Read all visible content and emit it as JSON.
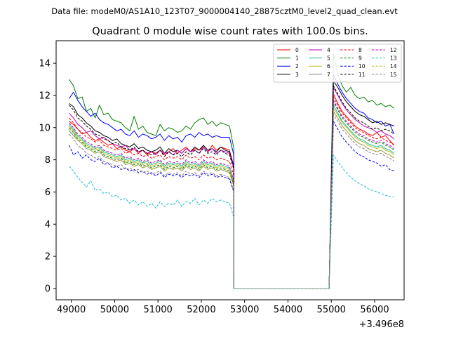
{
  "chart_data": {
    "type": "line",
    "suptitle": "Data file: modeM0/AS1A10_123T07_9000004140_28875cztM0_level2_quad_clean.evt",
    "title": "Quadrant 0 module wise count rates with 100.0s bins.",
    "xlabel": "",
    "ylabel": "",
    "x_offset_label": "+3.496e8",
    "xlim": [
      48650,
      56680
    ],
    "ylim": [
      -0.7,
      15.4
    ],
    "x_ticks": [
      49000,
      50000,
      51000,
      52000,
      53000,
      54000,
      55000,
      56000
    ],
    "x_tick_labels": [
      "49000",
      "50000",
      "51000",
      "52000",
      "53000",
      "54000",
      "55000",
      "56000"
    ],
    "y_ticks": [
      0,
      2,
      4,
      6,
      8,
      10,
      12,
      14
    ],
    "y_tick_labels": [
      "0",
      "2",
      "4",
      "6",
      "8",
      "10",
      "12",
      "14"
    ],
    "grid": false,
    "legend_position": "upper-right",
    "legend_columns": 4,
    "x_start": 48950,
    "x_step": 100,
    "gap_start": 52750,
    "gap_end": 54950,
    "series": [
      {
        "name": "0",
        "color": "#ff0000",
        "dash": "solid",
        "pre": [
          10.4,
          10.2,
          9.9,
          9.6,
          9.7,
          9.4,
          9.2,
          9.3,
          9.1,
          8.9,
          9.0,
          8.7,
          8.8,
          8.6,
          8.5,
          8.7,
          8.4,
          8.6,
          8.3,
          8.5,
          8.4,
          8.6,
          8.3,
          8.5,
          8.7,
          8.4,
          8.6,
          8.8,
          8.5,
          8.7,
          8.6,
          8.8,
          8.5,
          8.9,
          8.6,
          8.8,
          8.7,
          8.6,
          7.6
        ],
        "post": [
          12.1,
          11.5,
          11.0,
          10.7,
          10.4,
          10.1,
          9.9,
          9.8,
          9.6,
          9.5,
          9.7,
          9.4,
          9.5,
          9.2,
          8.9
        ]
      },
      {
        "name": "1",
        "color": "#008000",
        "dash": "solid",
        "pre": [
          13.0,
          12.6,
          11.8,
          11.9,
          11.0,
          11.2,
          10.6,
          11.4,
          10.8,
          10.9,
          10.5,
          10.4,
          10.3,
          10.0,
          9.8,
          10.7,
          9.9,
          10.1,
          9.7,
          9.6,
          9.5,
          10.2,
          9.8,
          10.0,
          9.9,
          9.7,
          9.8,
          10.1,
          9.9,
          10.3,
          10.5,
          10.6,
          10.2,
          10.4,
          10.1,
          10.3,
          10.2,
          10.1,
          8.7
        ],
        "post": [
          14.6,
          13.3,
          12.6,
          12.2,
          12.5,
          12.0,
          11.8,
          11.9,
          11.6,
          11.7,
          11.4,
          11.5,
          11.3,
          11.4,
          11.2
        ]
      },
      {
        "name": "2",
        "color": "#0000ff",
        "dash": "solid",
        "pre": [
          11.8,
          12.2,
          11.7,
          11.3,
          11.0,
          10.7,
          10.9,
          10.5,
          10.3,
          10.2,
          10.0,
          9.8,
          9.9,
          9.6,
          9.5,
          9.8,
          9.4,
          9.6,
          9.5,
          9.3,
          9.4,
          9.6,
          9.2,
          9.5,
          9.3,
          9.4,
          9.1,
          9.5,
          9.6,
          9.4,
          9.7,
          9.5,
          9.6,
          9.4,
          9.5,
          9.4,
          9.4,
          9.4,
          8.3
        ],
        "post": [
          13.3,
          12.7,
          12.2,
          11.8,
          11.5,
          11.2,
          11.0,
          10.9,
          10.6,
          10.5,
          10.3,
          10.4,
          10.1,
          10.2,
          9.6
        ]
      },
      {
        "name": "3",
        "color": "#000000",
        "dash": "solid",
        "pre": [
          11.5,
          11.3,
          10.8,
          10.6,
          10.3,
          10.1,
          9.8,
          9.7,
          9.5,
          9.4,
          9.2,
          9.3,
          9.0,
          8.9,
          8.8,
          9.0,
          8.7,
          8.8,
          8.6,
          8.5,
          8.6,
          8.8,
          8.4,
          8.7,
          8.5,
          8.6,
          8.4,
          8.7,
          8.5,
          8.8,
          8.6,
          8.9,
          8.6,
          8.7,
          8.5,
          8.8,
          8.6,
          8.5,
          7.6
        ],
        "post": [
          12.9,
          12.5,
          12.0,
          11.6,
          11.3,
          11.0,
          10.8,
          10.7,
          10.5,
          10.3,
          10.4,
          10.2,
          10.3,
          10.2,
          10.1
        ]
      },
      {
        "name": "4",
        "color": "#bf00bf",
        "dash": "solid",
        "pre": [
          10.9,
          10.6,
          10.2,
          10.0,
          9.7,
          9.8,
          9.5,
          9.3,
          9.4,
          9.2,
          9.0,
          8.9,
          8.8,
          8.9,
          8.6,
          8.7,
          8.5,
          8.6,
          8.4,
          8.5,
          8.3,
          8.6,
          8.4,
          8.5,
          8.3,
          8.6,
          8.4,
          8.7,
          8.5,
          8.6,
          8.4,
          8.8,
          8.5,
          8.7,
          8.4,
          8.6,
          8.5,
          8.4,
          7.5
        ],
        "post": [
          12.5,
          12.0,
          11.5,
          11.1,
          10.8,
          10.5,
          10.3,
          10.1,
          10.0,
          9.9,
          9.7,
          9.8,
          9.6,
          9.5,
          9.3
        ]
      },
      {
        "name": "5",
        "color": "#1abc9c",
        "dash": "solid",
        "pre": [
          10.2,
          9.9,
          9.5,
          9.3,
          9.0,
          8.9,
          8.7,
          8.8,
          8.5,
          8.4,
          8.3,
          8.2,
          8.3,
          8.0,
          8.1,
          7.9,
          8.0,
          7.8,
          7.9,
          7.7,
          7.8,
          7.9,
          7.6,
          7.8,
          7.7,
          7.8,
          7.6,
          7.9,
          7.7,
          7.8,
          7.6,
          7.9,
          7.7,
          7.8,
          7.6,
          7.7,
          7.6,
          7.5,
          6.6
        ],
        "post": [
          11.4,
          10.9,
          10.4,
          10.1,
          9.8,
          9.5,
          9.3,
          9.2,
          9.0,
          8.9,
          8.8,
          8.9,
          8.7,
          8.6,
          8.4
        ]
      },
      {
        "name": "6",
        "color": "#bcbd22",
        "dash": "solid",
        "pre": [
          10.1,
          9.8,
          9.4,
          9.2,
          8.9,
          8.8,
          8.6,
          8.7,
          8.4,
          8.3,
          8.2,
          8.1,
          8.2,
          7.9,
          8.0,
          7.8,
          7.9,
          7.7,
          7.8,
          7.6,
          7.7,
          7.8,
          7.5,
          7.7,
          7.6,
          7.7,
          7.5,
          7.8,
          7.6,
          7.7,
          7.5,
          7.8,
          7.6,
          7.7,
          7.5,
          7.6,
          7.5,
          7.4,
          6.5
        ],
        "post": [
          11.2,
          10.8,
          10.3,
          10.0,
          9.7,
          9.4,
          9.2,
          9.1,
          8.9,
          8.8,
          8.7,
          8.8,
          8.6,
          8.5,
          8.3
        ]
      },
      {
        "name": "7",
        "color": "#808080",
        "dash": "solid",
        "pre": [
          9.8,
          9.5,
          9.2,
          9.0,
          8.7,
          8.6,
          8.4,
          8.5,
          8.2,
          8.1,
          8.0,
          7.9,
          8.0,
          7.7,
          7.8,
          7.6,
          7.7,
          7.5,
          7.6,
          7.4,
          7.5,
          7.6,
          7.3,
          7.5,
          7.4,
          7.5,
          7.3,
          7.6,
          7.4,
          7.5,
          7.3,
          7.6,
          7.4,
          7.5,
          7.3,
          7.4,
          7.3,
          7.2,
          6.4
        ],
        "post": [
          11.0,
          10.6,
          10.1,
          9.8,
          9.5,
          9.2,
          9.0,
          8.9,
          8.7,
          8.6,
          8.5,
          8.6,
          8.4,
          8.3,
          8.1
        ]
      },
      {
        "name": "8",
        "color": "#ff0000",
        "dash": "dashed",
        "pre": [
          10.6,
          10.3,
          9.9,
          9.7,
          9.4,
          9.3,
          9.1,
          9.2,
          8.9,
          8.8,
          8.7,
          8.6,
          8.7,
          8.4,
          8.5,
          8.3,
          8.4,
          8.2,
          8.3,
          8.1,
          8.2,
          8.3,
          8.0,
          8.2,
          8.1,
          8.2,
          8.0,
          8.3,
          8.1,
          8.2,
          8.0,
          8.3,
          8.1,
          8.2,
          8.0,
          8.1,
          8.0,
          7.9,
          7.0
        ],
        "post": [
          11.9,
          11.4,
          10.9,
          10.6,
          10.3,
          10.0,
          9.8,
          9.7,
          9.5,
          9.4,
          9.3,
          9.4,
          9.2,
          9.1,
          8.9
        ]
      },
      {
        "name": "9",
        "color": "#008000",
        "dash": "dashed",
        "pre": [
          10.0,
          9.7,
          9.3,
          9.1,
          8.8,
          8.7,
          8.5,
          8.6,
          8.3,
          8.2,
          8.1,
          8.0,
          8.1,
          7.8,
          7.9,
          7.7,
          7.8,
          7.6,
          7.7,
          7.5,
          7.6,
          7.7,
          7.4,
          7.6,
          7.5,
          7.6,
          7.4,
          7.7,
          7.5,
          7.6,
          7.4,
          7.7,
          7.5,
          7.6,
          7.4,
          7.5,
          7.4,
          7.3,
          6.4
        ],
        "post": [
          11.6,
          11.1,
          10.6,
          10.3,
          10.0,
          9.7,
          9.5,
          9.4,
          9.2,
          9.1,
          9.0,
          9.1,
          8.9,
          8.8,
          8.6
        ]
      },
      {
        "name": "10",
        "color": "#0000ff",
        "dash": "dashed",
        "pre": [
          8.9,
          8.3,
          8.5,
          8.1,
          8.3,
          8.0,
          7.9,
          8.1,
          7.7,
          7.8,
          7.5,
          7.6,
          7.4,
          7.5,
          7.3,
          7.4,
          7.2,
          7.3,
          7.1,
          7.2,
          7.0,
          7.2,
          6.9,
          7.1,
          7.0,
          7.1,
          6.9,
          7.1,
          7.0,
          7.1,
          6.9,
          7.2,
          7.0,
          7.1,
          6.9,
          7.0,
          6.9,
          6.8,
          6.0
        ],
        "post": [
          10.4,
          9.9,
          9.4,
          9.1,
          8.8,
          8.5,
          8.3,
          8.2,
          8.0,
          7.9,
          7.8,
          7.6,
          7.7,
          7.4,
          7.3
        ]
      },
      {
        "name": "11",
        "color": "#000000",
        "dash": "dashed",
        "pre": [
          11.4,
          11.1,
          10.6,
          10.4,
          10.1,
          9.9,
          9.6,
          9.5,
          9.3,
          9.2,
          9.0,
          9.1,
          8.8,
          8.7,
          8.6,
          8.8,
          8.5,
          8.6,
          8.4,
          8.3,
          8.4,
          8.6,
          8.2,
          8.5,
          8.3,
          8.4,
          8.2,
          8.5,
          8.3,
          8.6,
          8.4,
          8.7,
          8.4,
          8.5,
          8.3,
          8.6,
          8.4,
          8.3,
          7.4
        ],
        "post": [
          12.6,
          12.1,
          11.6,
          11.2,
          10.9,
          10.6,
          10.4,
          10.3,
          10.1,
          9.9,
          10.0,
          9.8,
          9.9,
          9.8,
          9.6
        ]
      },
      {
        "name": "12",
        "color": "#bf00bf",
        "dash": "dashed",
        "pre": [
          10.3,
          10.0,
          9.6,
          9.4,
          9.1,
          9.0,
          8.8,
          8.9,
          8.6,
          8.5,
          8.4,
          8.3,
          8.4,
          8.1,
          8.2,
          8.0,
          8.1,
          7.9,
          8.0,
          7.8,
          7.9,
          8.0,
          7.7,
          7.9,
          7.8,
          7.9,
          7.7,
          8.0,
          7.8,
          7.9,
          7.7,
          8.0,
          7.8,
          7.9,
          7.7,
          7.8,
          7.7,
          7.6,
          6.7
        ],
        "post": [
          11.7,
          11.2,
          10.7,
          10.4,
          10.1,
          9.8,
          9.6,
          9.5,
          9.3,
          9.2,
          9.1,
          9.2,
          9.0,
          8.9,
          8.7
        ]
      },
      {
        "name": "13",
        "color": "#17becf",
        "dash": "dashed",
        "pre": [
          7.6,
          7.3,
          6.9,
          6.6,
          6.3,
          6.7,
          6.1,
          6.2,
          5.9,
          6.0,
          5.7,
          5.8,
          5.5,
          5.6,
          5.3,
          5.5,
          5.2,
          5.4,
          5.1,
          5.3,
          5.0,
          5.4,
          5.1,
          5.3,
          5.2,
          5.5,
          5.1,
          5.4,
          5.3,
          5.6,
          5.2,
          5.5,
          5.3,
          5.6,
          5.4,
          5.5,
          5.4,
          5.3,
          4.4
        ],
        "post": [
          8.3,
          7.9,
          7.5,
          7.2,
          6.9,
          6.7,
          6.5,
          6.4,
          6.2,
          6.1,
          6.0,
          5.9,
          5.8,
          5.7,
          5.7
        ]
      },
      {
        "name": "14",
        "color": "#bcbd22",
        "dash": "dashed",
        "pre": [
          9.9,
          9.6,
          9.2,
          9.0,
          8.7,
          8.6,
          8.4,
          8.5,
          8.2,
          8.1,
          8.0,
          7.9,
          8.0,
          7.7,
          7.8,
          7.6,
          7.7,
          7.5,
          7.6,
          7.4,
          7.5,
          7.6,
          7.3,
          7.5,
          7.4,
          7.5,
          7.3,
          7.6,
          7.4,
          7.5,
          7.3,
          7.6,
          7.4,
          7.5,
          7.3,
          7.4,
          7.3,
          7.2,
          6.3
        ],
        "post": [
          11.0,
          10.6,
          10.1,
          9.8,
          9.5,
          9.2,
          9.0,
          8.9,
          8.7,
          8.6,
          8.5,
          8.6,
          8.4,
          8.3,
          8.1
        ]
      },
      {
        "name": "15",
        "color": "#808080",
        "dash": "dashed",
        "pre": [
          9.6,
          9.3,
          8.9,
          8.7,
          8.4,
          8.3,
          8.1,
          8.2,
          7.9,
          7.8,
          7.7,
          7.6,
          7.7,
          7.4,
          7.5,
          7.3,
          7.4,
          7.2,
          7.3,
          7.1,
          7.2,
          7.3,
          7.0,
          7.2,
          7.1,
          7.2,
          7.0,
          7.3,
          7.1,
          7.2,
          7.0,
          7.3,
          7.1,
          7.2,
          7.0,
          7.1,
          7.0,
          6.9,
          6.1
        ],
        "post": [
          10.8,
          10.4,
          9.9,
          9.6,
          9.3,
          9.0,
          8.8,
          8.7,
          8.5,
          8.4,
          8.3,
          8.4,
          8.2,
          8.1,
          7.9
        ]
      }
    ]
  }
}
